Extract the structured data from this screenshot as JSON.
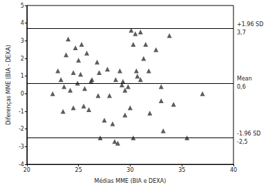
{
  "chart_data": {
    "type": "scatter",
    "x_label": "Médias MME (BIA e DEXA)",
    "y_label": "Diferenças MME (BIA - DEXA)",
    "x": [
      22.5,
      23,
      23.3,
      23.5,
      23.6,
      23.8,
      24,
      24.2,
      24.5,
      24.5,
      24.7,
      24.9,
      25,
      25.2,
      25.3,
      25.5,
      25.6,
      25.8,
      26,
      26.2,
      26.3,
      26.8,
      26.9,
      27,
      27.1,
      27.5,
      27.8,
      28,
      28.3,
      28.5,
      28.6,
      28.8,
      29,
      29.2,
      29.3,
      29.5,
      29.5,
      29.8,
      30,
      30.1,
      30.3,
      30.3,
      30.5,
      30.6,
      30.7,
      31,
      31,
      31.3,
      31.5,
      31.8,
      31.9,
      32.5,
      33,
      33,
      33.2,
      33.8,
      34.2,
      35.5,
      37
    ],
    "values": [
      0.0,
      1.3,
      0.8,
      -1.0,
      0.4,
      2.2,
      3.1,
      0.2,
      1.2,
      -0.8,
      2.6,
      0.6,
      1.9,
      1.1,
      2.8,
      -0.7,
      0.3,
      2.3,
      -0.9,
      0.7,
      0.8,
      1.8,
      -0.1,
      1.2,
      -2.5,
      -1.5,
      1.4,
      -0.1,
      -1.7,
      -2.7,
      0.8,
      -2.8,
      1.3,
      0.5,
      0.7,
      -1.2,
      0.2,
      0.4,
      -0.8,
      3.6,
      2.8,
      -2.5,
      3.4,
      1.3,
      1.0,
      0.8,
      3.5,
      2.0,
      2.8,
      1.3,
      -1.1,
      2.5,
      0.4,
      -0.4,
      -2.1,
      3.3,
      -0.6,
      -2.5,
      0.0
    ],
    "color": "#333333",
    "marker": "triangle",
    "xlim": [
      20,
      40
    ],
    "xticks": [
      20,
      25,
      30,
      35,
      40
    ],
    "ylim": [
      -4,
      5
    ],
    "yticks": [
      -4,
      -3,
      -2,
      -1,
      0,
      1,
      2,
      3,
      4,
      5
    ],
    "grid": false,
    "reference_lines": [
      {
        "name": "+1.96 SD",
        "value": 3.7,
        "value_label": "3,7"
      },
      {
        "name": "Mean",
        "value": 0.6,
        "value_label": "0,6"
      },
      {
        "name": "-1.96 SD",
        "value": -2.5,
        "value_label": "-2,5"
      }
    ]
  }
}
